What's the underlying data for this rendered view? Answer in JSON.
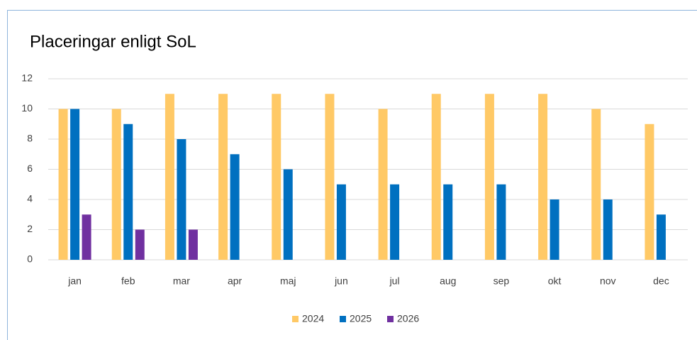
{
  "chart_data": {
    "type": "bar",
    "title": "Placeringar enligt SoL",
    "categories": [
      "jan",
      "feb",
      "mar",
      "apr",
      "maj",
      "jun",
      "jul",
      "aug",
      "sep",
      "okt",
      "nov",
      "dec"
    ],
    "series": [
      {
        "name": "2024",
        "color": "#ffc966",
        "values": [
          10,
          10,
          11,
          11,
          11,
          11,
          10,
          11,
          11,
          11,
          10,
          9
        ]
      },
      {
        "name": "2025",
        "color": "#0070c0",
        "values": [
          10,
          9,
          8,
          7,
          6,
          5,
          5,
          5,
          5,
          4,
          4,
          3
        ]
      },
      {
        "name": "2026",
        "color": "#7030a0",
        "values": [
          3,
          2,
          2,
          null,
          null,
          null,
          null,
          null,
          null,
          null,
          null,
          null
        ]
      }
    ],
    "ylim": [
      0,
      12
    ],
    "yticks": [
      0,
      2,
      4,
      6,
      8,
      10,
      12
    ],
    "grid": true,
    "legend": "bottom"
  }
}
